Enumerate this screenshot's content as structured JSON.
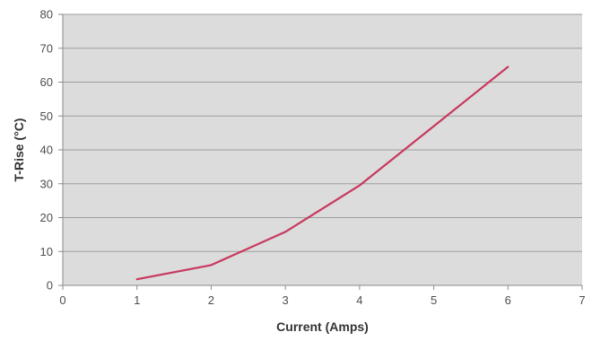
{
  "chart_data": {
    "type": "line",
    "title": "",
    "xlabel": "Current (Amps)",
    "ylabel": "T-Rise (°C)",
    "xlim": [
      0,
      7
    ],
    "ylim": [
      0,
      80
    ],
    "xticks": [
      0,
      1,
      2,
      3,
      4,
      5,
      6,
      7
    ],
    "yticks": [
      0,
      10,
      20,
      30,
      40,
      50,
      60,
      70,
      80
    ],
    "grid": true,
    "legend": "none",
    "x": [
      1,
      2,
      3,
      4,
      5,
      6
    ],
    "series": [
      {
        "values": [
          1.8,
          6,
          15.8,
          29.5,
          47,
          64.5
        ],
        "color": "#c8385e"
      }
    ],
    "colors": {
      "plot_background": "#dcdcdc",
      "gridline": "#9e9e9e",
      "axis": "#8a8a8a"
    }
  }
}
